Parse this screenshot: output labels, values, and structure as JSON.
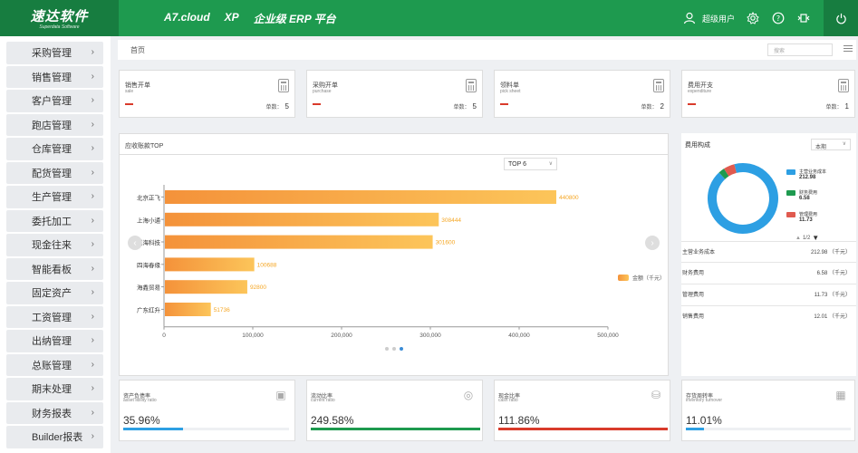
{
  "header": {
    "logo_text": "速达软件",
    "logo_subtext": "Superdata Software",
    "product": "A7.cloud",
    "edition": "XP",
    "platform": "企业级 ERP 平台",
    "user": "超级用户"
  },
  "sidebar": {
    "items": [
      {
        "label": "采购管理"
      },
      {
        "label": "销售管理"
      },
      {
        "label": "客户管理"
      },
      {
        "label": "跑店管理"
      },
      {
        "label": "仓库管理"
      },
      {
        "label": "配货管理"
      },
      {
        "label": "生产管理"
      },
      {
        "label": "委托加工"
      },
      {
        "label": "现金往来"
      },
      {
        "label": "智能看板"
      },
      {
        "label": "固定资产"
      },
      {
        "label": "工资管理"
      },
      {
        "label": "出纳管理"
      },
      {
        "label": "总账管理"
      },
      {
        "label": "期末处理"
      },
      {
        "label": "财务报表"
      },
      {
        "label": "Builder报表"
      }
    ]
  },
  "breadcrumb": {
    "home": "首页",
    "search_placeholder": "搜索"
  },
  "kpis": [
    {
      "title": "销售开单",
      "subtitle": "sale",
      "count_label": "单数：",
      "count": "5"
    },
    {
      "title": "采购开单",
      "subtitle": "purchase",
      "count_label": "单数：",
      "count": "5"
    },
    {
      "title": "领料单",
      "subtitle": "pick sheet",
      "count_label": "单数：",
      "count": "2"
    },
    {
      "title": "费用开支",
      "subtitle": "expenditure",
      "count_label": "单数：",
      "count": "1"
    }
  ],
  "receivables": {
    "title": "应收账款TOP",
    "top_select": "TOP 6",
    "legend": "金额（千元）"
  },
  "chart_data": {
    "type": "bar",
    "orientation": "horizontal",
    "title": "应收账款TOP",
    "categories": [
      "北京正飞",
      "上海小通",
      "淇海科技",
      "四海春缘",
      "海鑫贸易",
      "广东红升"
    ],
    "series": [
      {
        "name": "金额（千元）",
        "values": [
          440800,
          308444,
          301600,
          100688,
          92800,
          51736
        ]
      }
    ],
    "value_labels": [
      "440800",
      "308444",
      "301600",
      "100688",
      "92800",
      "51736"
    ],
    "xticks": [
      "0",
      "100,000",
      "200,000",
      "300,000",
      "400,000",
      "500,000"
    ],
    "xlim": [
      0,
      500000
    ],
    "legend_position": "right",
    "grid": false,
    "colors": {
      "bar_start": "#f4923a",
      "bar_end": "#fcc55a",
      "label": "#f5a623"
    }
  },
  "expense": {
    "title": "费用构成",
    "period": "本期",
    "legend": [
      {
        "name": "主营业务成本",
        "value": "212.98",
        "color": "#2d9fe3"
      },
      {
        "name": "财务费用",
        "value": "6.58",
        "color": "#1e9a4f"
      },
      {
        "name": "管理费用",
        "value": "11.73",
        "color": "#e05a4f"
      }
    ],
    "pager": "1/2",
    "rows": [
      {
        "name": "主营业务成本",
        "value": "212.98 （千元）"
      },
      {
        "name": "财务费用",
        "value": "6.58 （千元）"
      },
      {
        "name": "管理费用",
        "value": "11.73 （千元）"
      },
      {
        "name": "销售费用",
        "value": "12.01 （千元）"
      }
    ]
  },
  "ratios": [
    {
      "title": "资产负债率",
      "subtitle": "asset libility ratio",
      "value": "35.96%",
      "fill": 0.36,
      "color": "#2d9fe3",
      "icon": "report-icon"
    },
    {
      "title": "流动比率",
      "subtitle": "current ratio",
      "value": "249.58%",
      "fill": 1.0,
      "color": "#1e9a4f",
      "icon": "gauge-icon"
    },
    {
      "title": "现金比率",
      "subtitle": "cash ratio",
      "value": "111.86%",
      "fill": 1.0,
      "color": "#d93b2b",
      "icon": "coins-icon"
    },
    {
      "title": "存货周转率",
      "subtitle": "inventory turnover",
      "value": "11.01%",
      "fill": 0.11,
      "color": "#2d9fe3",
      "icon": "box-icon"
    }
  ]
}
